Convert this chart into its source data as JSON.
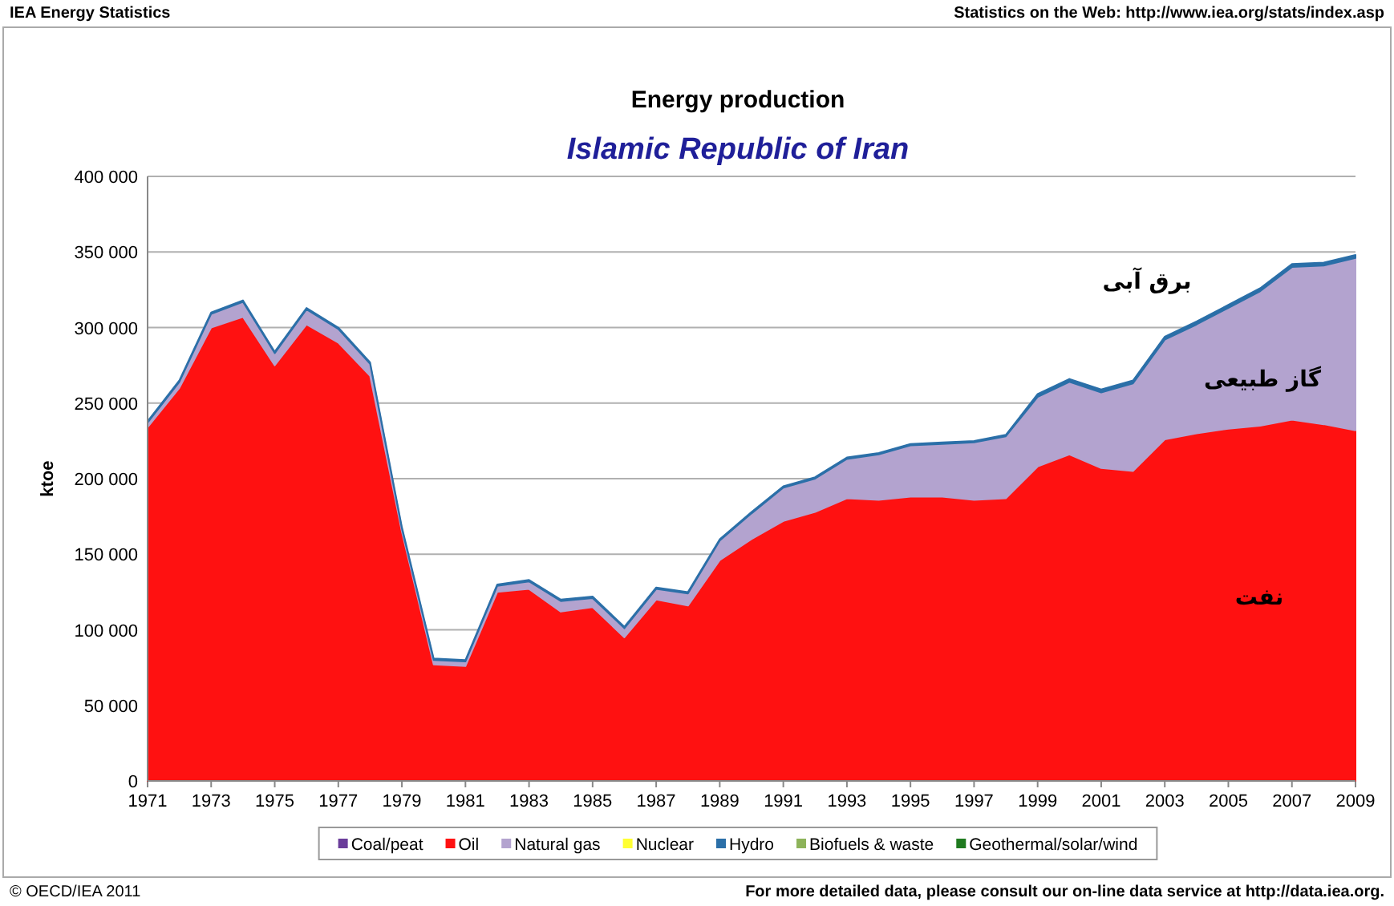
{
  "chart_data": {
    "type": "area",
    "stacked": true,
    "title": "Energy production",
    "subtitle": "Islamic Republic of Iran",
    "ylabel": "ktoe",
    "x": [
      1971,
      1972,
      1973,
      1974,
      1975,
      1976,
      1977,
      1978,
      1979,
      1980,
      1981,
      1982,
      1983,
      1984,
      1985,
      1986,
      1987,
      1988,
      1989,
      1990,
      1991,
      1992,
      1993,
      1994,
      1995,
      1996,
      1997,
      1998,
      1999,
      2000,
      2001,
      2002,
      2003,
      2004,
      2005,
      2006,
      2007,
      2008,
      2009
    ],
    "xlim": [
      1971,
      2009
    ],
    "xticks": [
      1971,
      1973,
      1975,
      1977,
      1979,
      1981,
      1983,
      1985,
      1987,
      1989,
      1991,
      1993,
      1995,
      1997,
      1999,
      2001,
      2003,
      2005,
      2007,
      2009
    ],
    "ylim": [
      0,
      400000
    ],
    "yticks": [
      {
        "value": 0,
        "label": "0"
      },
      {
        "value": 50000,
        "label": "50 000"
      },
      {
        "value": 100000,
        "label": "100 000"
      },
      {
        "value": 150000,
        "label": "150 000"
      },
      {
        "value": 200000,
        "label": "200 000"
      },
      {
        "value": 250000,
        "label": "250 000"
      },
      {
        "value": 300000,
        "label": "300 000"
      },
      {
        "value": 350000,
        "label": "350 000"
      },
      {
        "value": 400000,
        "label": "400 000"
      }
    ],
    "grid": "y",
    "legend": "bottom",
    "series": [
      {
        "name": "Coal/peat",
        "color": "#6a3d9a",
        "values": [
          null,
          null,
          null,
          null,
          null,
          null,
          null,
          null,
          null,
          null,
          null,
          null,
          null,
          null,
          null,
          null,
          null,
          null,
          null,
          null,
          null,
          null,
          null,
          null,
          null,
          null,
          null,
          null,
          null,
          null,
          null,
          null,
          null,
          null,
          null,
          null,
          null,
          null,
          null
        ]
      },
      {
        "name": "Oil",
        "color": "#ff1111",
        "values": [
          234000,
          260000,
          300000,
          307000,
          275000,
          302000,
          290000,
          268000,
          165000,
          77000,
          76000,
          125000,
          127000,
          112000,
          115000,
          95000,
          120000,
          116000,
          146000,
          160000,
          172000,
          178000,
          187000,
          186000,
          188000,
          188000,
          186000,
          187000,
          208000,
          216000,
          207000,
          205000,
          226000,
          230000,
          233000,
          235000,
          239000,
          236000,
          232000
        ]
      },
      {
        "name": "Natural gas",
        "color": "#b3a3cf",
        "values": [
          3000,
          4000,
          9000,
          10000,
          8000,
          10000,
          9000,
          8000,
          2000,
          3000,
          3000,
          4000,
          5000,
          7000,
          6000,
          6000,
          7000,
          8000,
          13000,
          17000,
          22000,
          22000,
          26000,
          30000,
          34000,
          35000,
          38000,
          41000,
          46000,
          48000,
          50000,
          58000,
          66000,
          72000,
          80000,
          89000,
          101000,
          105000,
          114000
        ]
      },
      {
        "name": "Nuclear",
        "color": "#ffff33",
        "values": [
          null,
          null,
          null,
          null,
          null,
          null,
          null,
          null,
          null,
          null,
          null,
          null,
          null,
          null,
          null,
          null,
          null,
          null,
          null,
          null,
          null,
          null,
          null,
          null,
          null,
          null,
          null,
          null,
          null,
          null,
          null,
          null,
          null,
          null,
          null,
          null,
          null,
          null,
          null
        ]
      },
      {
        "name": "Hydro",
        "color": "#2b6fa8",
        "values": [
          1000,
          1000,
          1000,
          1000,
          1000,
          1000,
          1000,
          1000,
          1000,
          1000,
          1000,
          1000,
          1000,
          1000,
          1000,
          1000,
          1000,
          1000,
          1000,
          1000,
          1000,
          1000,
          1000,
          1000,
          1000,
          1000,
          1000,
          1000,
          2000,
          2000,
          2000,
          2000,
          2000,
          2000,
          2000,
          2000,
          2000,
          2000,
          2000
        ]
      },
      {
        "name": "Biofuels & waste",
        "color": "#8db35a",
        "values": [
          null,
          null,
          null,
          null,
          null,
          null,
          null,
          null,
          null,
          null,
          null,
          null,
          null,
          null,
          null,
          null,
          null,
          null,
          null,
          null,
          null,
          null,
          null,
          null,
          null,
          null,
          null,
          null,
          null,
          null,
          null,
          null,
          null,
          null,
          null,
          null,
          null,
          null,
          null
        ]
      },
      {
        "name": "Geothermal/solar/wind",
        "color": "#1f7a1f",
        "values": [
          null,
          null,
          null,
          null,
          null,
          null,
          null,
          null,
          null,
          null,
          null,
          null,
          null,
          null,
          null,
          null,
          null,
          null,
          null,
          null,
          null,
          null,
          null,
          null,
          null,
          null,
          null,
          null,
          null,
          null,
          null,
          null,
          null,
          null,
          null,
          null,
          null,
          null,
          null
        ]
      }
    ],
    "annotations": [
      "IEA Energy Statistics",
      "Statistics on the Web: http://www.iea.org/stats/index.asp",
      "© OECD/IEA 2011",
      "For more detailed data, please consult our on-line data service at http://data.iea.org.",
      "برق آبی",
      "گاز طبیعی",
      "نفت"
    ]
  }
}
